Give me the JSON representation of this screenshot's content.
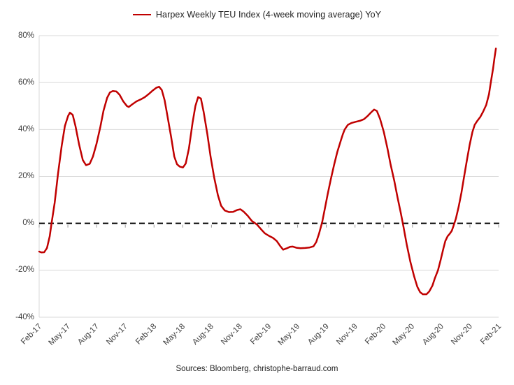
{
  "legend": {
    "label": "Harpex Weekly TEU Index (4-week moving average) YoY"
  },
  "source_note": "Sources: Bloomberg, christophe-barraud.com",
  "chart_data": {
    "type": "line",
    "title": "Harpex Weekly TEU Index (4-week moving average) YoY",
    "legend_position": "top",
    "grid": "horizontal",
    "ylim": [
      -40,
      80
    ],
    "ytick_step": 20,
    "yticks": [
      {
        "value": 80,
        "label": "80%"
      },
      {
        "value": 60,
        "label": "60%"
      },
      {
        "value": 40,
        "label": "40%"
      },
      {
        "value": 20,
        "label": "20%"
      },
      {
        "value": 0,
        "label": "0%"
      },
      {
        "value": -20,
        "label": "-20%"
      },
      {
        "value": -40,
        "label": "-40%"
      }
    ],
    "x_categories": [
      "Feb-17",
      "May-17",
      "Aug-17",
      "Nov-17",
      "Feb-18",
      "May-18",
      "Aug-18",
      "Nov-18",
      "Feb-19",
      "May-19",
      "Aug-19",
      "Nov-19",
      "Feb-20",
      "May-20",
      "Aug-20",
      "Nov-20",
      "Feb-21"
    ],
    "zero_line": {
      "value": 0,
      "style": "dashed",
      "color": "#000000"
    },
    "colors": {
      "line": "#C00000",
      "grid": "#D9D9D9",
      "axis": "#D9D9D9",
      "tick": "#9a9a9a",
      "axis_text": "#404040"
    },
    "series": [
      {
        "name": "Harpex Weekly TEU Index (4-week moving average) YoY",
        "unit": "%",
        "x_is_fraction_of_axis": true,
        "points": [
          [
            0.0,
            -12.0
          ],
          [
            0.005,
            -12.4
          ],
          [
            0.011,
            -12.3
          ],
          [
            0.017,
            -10.5
          ],
          [
            0.023,
            -5.5
          ],
          [
            0.027,
            0.0
          ],
          [
            0.034,
            9.0
          ],
          [
            0.041,
            21.0
          ],
          [
            0.049,
            33.0
          ],
          [
            0.056,
            41.5
          ],
          [
            0.063,
            45.8
          ],
          [
            0.067,
            47.2
          ],
          [
            0.073,
            46.2
          ],
          [
            0.079,
            41.5
          ],
          [
            0.087,
            33.5
          ],
          [
            0.095,
            27.0
          ],
          [
            0.102,
            24.8
          ],
          [
            0.11,
            25.4
          ],
          [
            0.117,
            28.5
          ],
          [
            0.125,
            34.0
          ],
          [
            0.133,
            41.0
          ],
          [
            0.14,
            48.0
          ],
          [
            0.148,
            53.5
          ],
          [
            0.154,
            55.8
          ],
          [
            0.16,
            56.4
          ],
          [
            0.168,
            56.2
          ],
          [
            0.175,
            54.8
          ],
          [
            0.183,
            52.0
          ],
          [
            0.191,
            50.0
          ],
          [
            0.195,
            49.6
          ],
          [
            0.203,
            50.8
          ],
          [
            0.212,
            52.0
          ],
          [
            0.221,
            52.8
          ],
          [
            0.23,
            53.8
          ],
          [
            0.239,
            55.2
          ],
          [
            0.247,
            56.6
          ],
          [
            0.255,
            57.8
          ],
          [
            0.261,
            58.2
          ],
          [
            0.267,
            56.8
          ],
          [
            0.273,
            52.5
          ],
          [
            0.279,
            46.0
          ],
          [
            0.287,
            37.0
          ],
          [
            0.294,
            28.5
          ],
          [
            0.3,
            25.2
          ],
          [
            0.306,
            24.2
          ],
          [
            0.313,
            23.8
          ],
          [
            0.319,
            25.5
          ],
          [
            0.326,
            32.0
          ],
          [
            0.334,
            43.0
          ],
          [
            0.34,
            50.0
          ],
          [
            0.346,
            53.8
          ],
          [
            0.352,
            53.2
          ],
          [
            0.358,
            47.5
          ],
          [
            0.366,
            38.0
          ],
          [
            0.373,
            28.5
          ],
          [
            0.381,
            19.5
          ],
          [
            0.389,
            12.0
          ],
          [
            0.396,
            7.5
          ],
          [
            0.404,
            5.5
          ],
          [
            0.413,
            4.8
          ],
          [
            0.422,
            4.9
          ],
          [
            0.431,
            5.7
          ],
          [
            0.438,
            6.0
          ],
          [
            0.445,
            5.0
          ],
          [
            0.454,
            3.2
          ],
          [
            0.463,
            1.0
          ],
          [
            0.474,
            -0.5
          ],
          [
            0.483,
            -2.5
          ],
          [
            0.491,
            -4.2
          ],
          [
            0.5,
            -5.3
          ],
          [
            0.509,
            -6.2
          ],
          [
            0.517,
            -7.5
          ],
          [
            0.524,
            -9.5
          ],
          [
            0.531,
            -11.2
          ],
          [
            0.538,
            -10.7
          ],
          [
            0.546,
            -10.0
          ],
          [
            0.552,
            -9.9
          ],
          [
            0.56,
            -10.4
          ],
          [
            0.569,
            -10.6
          ],
          [
            0.579,
            -10.5
          ],
          [
            0.588,
            -10.3
          ],
          [
            0.597,
            -9.8
          ],
          [
            0.603,
            -8.0
          ],
          [
            0.609,
            -4.5
          ],
          [
            0.616,
            0.5
          ],
          [
            0.622,
            6.5
          ],
          [
            0.628,
            12.5
          ],
          [
            0.635,
            19.0
          ],
          [
            0.642,
            25.0
          ],
          [
            0.649,
            30.5
          ],
          [
            0.657,
            35.5
          ],
          [
            0.661,
            38.0
          ],
          [
            0.665,
            40.0
          ],
          [
            0.672,
            42.0
          ],
          [
            0.68,
            42.8
          ],
          [
            0.689,
            43.3
          ],
          [
            0.698,
            43.7
          ],
          [
            0.707,
            44.4
          ],
          [
            0.715,
            45.8
          ],
          [
            0.723,
            47.4
          ],
          [
            0.729,
            48.5
          ],
          [
            0.735,
            47.9
          ],
          [
            0.742,
            44.5
          ],
          [
            0.75,
            39.0
          ],
          [
            0.758,
            32.0
          ],
          [
            0.765,
            25.0
          ],
          [
            0.773,
            18.0
          ],
          [
            0.78,
            11.0
          ],
          [
            0.787,
            4.5
          ],
          [
            0.793,
            -1.5
          ],
          [
            0.8,
            -9.0
          ],
          [
            0.808,
            -16.5
          ],
          [
            0.816,
            -22.5
          ],
          [
            0.823,
            -27.0
          ],
          [
            0.829,
            -29.3
          ],
          [
            0.835,
            -30.2
          ],
          [
            0.843,
            -30.2
          ],
          [
            0.849,
            -29.0
          ],
          [
            0.856,
            -26.5
          ],
          [
            0.861,
            -23.5
          ],
          [
            0.868,
            -20.0
          ],
          [
            0.874,
            -15.5
          ],
          [
            0.88,
            -10.5
          ],
          [
            0.884,
            -7.5
          ],
          [
            0.889,
            -5.5
          ],
          [
            0.893,
            -4.6
          ],
          [
            0.898,
            -3.2
          ],
          [
            0.902,
            -1.0
          ],
          [
            0.907,
            2.0
          ],
          [
            0.913,
            7.0
          ],
          [
            0.919,
            13.0
          ],
          [
            0.925,
            20.0
          ],
          [
            0.931,
            27.0
          ],
          [
            0.937,
            33.5
          ],
          [
            0.943,
            39.0
          ],
          [
            0.948,
            42.0
          ],
          [
            0.954,
            43.8
          ],
          [
            0.96,
            45.3
          ],
          [
            0.966,
            47.5
          ],
          [
            0.973,
            50.5
          ],
          [
            0.979,
            55.0
          ],
          [
            0.983,
            60.0
          ],
          [
            0.988,
            66.0
          ],
          [
            0.991,
            70.5
          ],
          [
            0.994,
            74.5
          ]
        ]
      }
    ]
  }
}
